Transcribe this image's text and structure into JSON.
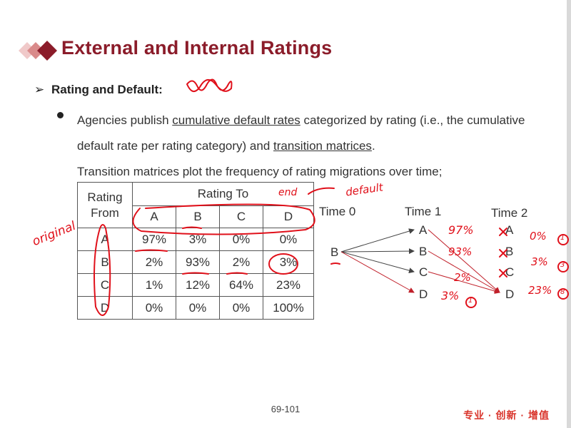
{
  "slide": {
    "title": "External and Internal Ratings",
    "section": "Rating and Default:",
    "bullet_intro": "Agencies publish ",
    "term1": "cumulative default rates",
    "bullet_mid": " categorized by rating (i.e., the cumulative default rate per rating category) and ",
    "term2": "transition matrices",
    "bullet_end": ".",
    "bullet_line3": "Transition matrices plot the frequency of rating migrations over time;"
  },
  "matrix": {
    "corner_label_1": "Rating",
    "corner_label_2": "From",
    "to_label": "Rating To",
    "columns": [
      "A",
      "B",
      "C",
      "D"
    ],
    "rows": [
      {
        "from": "A",
        "values": [
          "97%",
          "3%",
          "0%",
          "0%"
        ]
      },
      {
        "from": "B",
        "values": [
          "2%",
          "93%",
          "2%",
          "3%"
        ]
      },
      {
        "from": "C",
        "values": [
          "1%",
          "12%",
          "64%",
          "23%"
        ]
      },
      {
        "from": "D",
        "values": [
          "0%",
          "0%",
          "0%",
          "100%"
        ]
      }
    ]
  },
  "transition": {
    "time0": "Time 0",
    "time1": "Time 1",
    "time2": "Time 2",
    "start": "B",
    "t1_nodes": [
      "A",
      "B",
      "C",
      "D"
    ],
    "t2_nodes": [
      "A",
      "B",
      "C",
      "D"
    ]
  },
  "handwriting": {
    "origin": "original",
    "end": "end",
    "default": "default",
    "p1": "97%",
    "p2": "93%",
    "p3": "2%",
    "p4": "3%",
    "p4_mark": "1",
    "r1": "0%",
    "r2": "3%",
    "r3": "23%",
    "r1_mark": "1",
    "r2_mark": "3",
    "r3_mark": "8"
  },
  "footer": {
    "page": "69-101",
    "slogan": "专业 · 创新 · 增值"
  },
  "colors": {
    "title": "#8b1c2a",
    "ink": "#e0101a",
    "slogan": "#d9342b"
  }
}
